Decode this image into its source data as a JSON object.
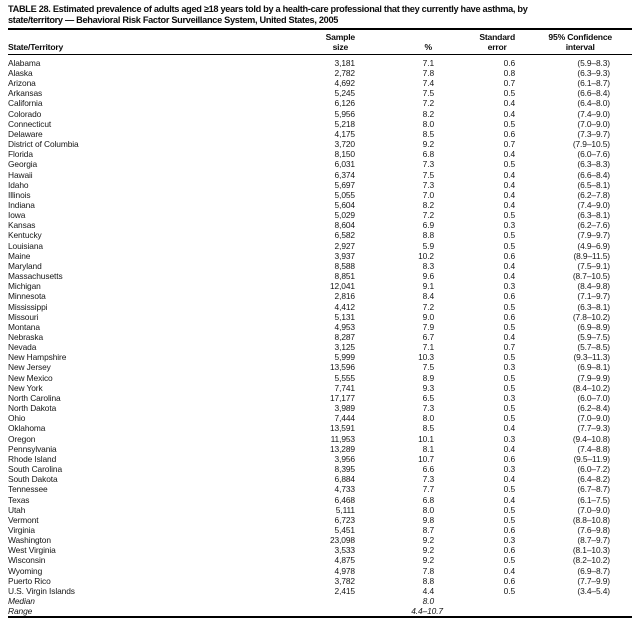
{
  "title": {
    "line1": "TABLE 28. Estimated prevalence of adults aged ≥18 years told by a health-care professional that they currently have asthma, by",
    "line2": "state/territory — Behavioral Risk Factor Surveillance System, United States, 2005"
  },
  "columns": {
    "state": "State/Territory",
    "sample": [
      "Sample",
      "size"
    ],
    "percent": "%",
    "standard_error": [
      "Standard",
      "error"
    ],
    "confidence_interval": [
      "95% Confidence",
      "interval"
    ]
  },
  "rows": [
    {
      "state": "Alabama",
      "sample": "3,181",
      "pct": "7.1",
      "se": "0.6",
      "ci": "(5.9–8.3)"
    },
    {
      "state": "Alaska",
      "sample": "2,782",
      "pct": "7.8",
      "se": "0.8",
      "ci": "(6.3–9.3)"
    },
    {
      "state": "Arizona",
      "sample": "4,692",
      "pct": "7.4",
      "se": "0.7",
      "ci": "(6.1–8.7)"
    },
    {
      "state": "Arkansas",
      "sample": "5,245",
      "pct": "7.5",
      "se": "0.5",
      "ci": "(6.6–8.4)"
    },
    {
      "state": "California",
      "sample": "6,126",
      "pct": "7.2",
      "se": "0.4",
      "ci": "(6.4–8.0)"
    },
    {
      "state": "Colorado",
      "sample": "5,956",
      "pct": "8.2",
      "se": "0.4",
      "ci": "(7.4–9.0)"
    },
    {
      "state": "Connecticut",
      "sample": "5,218",
      "pct": "8.0",
      "se": "0.5",
      "ci": "(7.0–9.0)"
    },
    {
      "state": "Delaware",
      "sample": "4,175",
      "pct": "8.5",
      "se": "0.6",
      "ci": "(7.3–9.7)"
    },
    {
      "state": "District of Columbia",
      "sample": "3,720",
      "pct": "9.2",
      "se": "0.7",
      "ci": "(7.9–10.5)"
    },
    {
      "state": "Florida",
      "sample": "8,150",
      "pct": "6.8",
      "se": "0.4",
      "ci": "(6.0–7.6)"
    },
    {
      "state": "Georgia",
      "sample": "6,031",
      "pct": "7.3",
      "se": "0.5",
      "ci": "(6.3–8.3)"
    },
    {
      "state": "Hawaii",
      "sample": "6,374",
      "pct": "7.5",
      "se": "0.4",
      "ci": "(6.6–8.4)"
    },
    {
      "state": "Idaho",
      "sample": "5,697",
      "pct": "7.3",
      "se": "0.4",
      "ci": "(6.5–8.1)"
    },
    {
      "state": "Illinois",
      "sample": "5,055",
      "pct": "7.0",
      "se": "0.4",
      "ci": "(6.2–7.8)"
    },
    {
      "state": "Indiana",
      "sample": "5,604",
      "pct": "8.2",
      "se": "0.4",
      "ci": "(7.4–9.0)"
    },
    {
      "state": "Iowa",
      "sample": "5,029",
      "pct": "7.2",
      "se": "0.5",
      "ci": "(6.3–8.1)"
    },
    {
      "state": "Kansas",
      "sample": "8,604",
      "pct": "6.9",
      "se": "0.3",
      "ci": "(6.2–7.6)"
    },
    {
      "state": "Kentucky",
      "sample": "6,582",
      "pct": "8.8",
      "se": "0.5",
      "ci": "(7.9–9.7)"
    },
    {
      "state": "Louisiana",
      "sample": "2,927",
      "pct": "5.9",
      "se": "0.5",
      "ci": "(4.9–6.9)"
    },
    {
      "state": "Maine",
      "sample": "3,937",
      "pct": "10.2",
      "se": "0.6",
      "ci": "(8.9–11.5)"
    },
    {
      "state": "Maryland",
      "sample": "8,588",
      "pct": "8.3",
      "se": "0.4",
      "ci": "(7.5–9.1)"
    },
    {
      "state": "Massachusetts",
      "sample": "8,851",
      "pct": "9.6",
      "se": "0.4",
      "ci": "(8.7–10.5)"
    },
    {
      "state": "Michigan",
      "sample": "12,041",
      "pct": "9.1",
      "se": "0.3",
      "ci": "(8.4–9.8)"
    },
    {
      "state": "Minnesota",
      "sample": "2,816",
      "pct": "8.4",
      "se": "0.6",
      "ci": "(7.1–9.7)"
    },
    {
      "state": "Mississippi",
      "sample": "4,412",
      "pct": "7.2",
      "se": "0.5",
      "ci": "(6.3–8.1)"
    },
    {
      "state": "Missouri",
      "sample": "5,131",
      "pct": "9.0",
      "se": "0.6",
      "ci": "(7.8–10.2)"
    },
    {
      "state": "Montana",
      "sample": "4,953",
      "pct": "7.9",
      "se": "0.5",
      "ci": "(6.9–8.9)"
    },
    {
      "state": "Nebraska",
      "sample": "8,287",
      "pct": "6.7",
      "se": "0.4",
      "ci": "(5.9–7.5)"
    },
    {
      "state": "Nevada",
      "sample": "3,125",
      "pct": "7.1",
      "se": "0.7",
      "ci": "(5.7–8.5)"
    },
    {
      "state": "New Hampshire",
      "sample": "5,999",
      "pct": "10.3",
      "se": "0.5",
      "ci": "(9.3–11.3)"
    },
    {
      "state": "New Jersey",
      "sample": "13,596",
      "pct": "7.5",
      "se": "0.3",
      "ci": "(6.9–8.1)"
    },
    {
      "state": "New Mexico",
      "sample": "5,555",
      "pct": "8.9",
      "se": "0.5",
      "ci": "(7.9–9.9)"
    },
    {
      "state": "New York",
      "sample": "7,741",
      "pct": "9.3",
      "se": "0.5",
      "ci": "(8.4–10.2)"
    },
    {
      "state": "North Carolina",
      "sample": "17,177",
      "pct": "6.5",
      "se": "0.3",
      "ci": "(6.0–7.0)"
    },
    {
      "state": "North Dakota",
      "sample": "3,989",
      "pct": "7.3",
      "se": "0.5",
      "ci": "(6.2–8.4)"
    },
    {
      "state": "Ohio",
      "sample": "7,444",
      "pct": "8.0",
      "se": "0.5",
      "ci": "(7.0–9.0)"
    },
    {
      "state": "Oklahoma",
      "sample": "13,591",
      "pct": "8.5",
      "se": "0.4",
      "ci": "(7.7–9.3)"
    },
    {
      "state": "Oregon",
      "sample": "11,953",
      "pct": "10.1",
      "se": "0.3",
      "ci": "(9.4–10.8)"
    },
    {
      "state": "Pennsylvania",
      "sample": "13,289",
      "pct": "8.1",
      "se": "0.4",
      "ci": "(7.4–8.8)"
    },
    {
      "state": "Rhode Island",
      "sample": "3,956",
      "pct": "10.7",
      "se": "0.6",
      "ci": "(9.5–11.9)"
    },
    {
      "state": "South Carolina",
      "sample": "8,395",
      "pct": "6.6",
      "se": "0.3",
      "ci": "(6.0–7.2)"
    },
    {
      "state": "South Dakota",
      "sample": "6,884",
      "pct": "7.3",
      "se": "0.4",
      "ci": "(6.4–8.2)"
    },
    {
      "state": "Tennessee",
      "sample": "4,733",
      "pct": "7.7",
      "se": "0.5",
      "ci": "(6.7–8.7)"
    },
    {
      "state": "Texas",
      "sample": "6,468",
      "pct": "6.8",
      "se": "0.4",
      "ci": "(6.1–7.5)"
    },
    {
      "state": "Utah",
      "sample": "5,111",
      "pct": "8.0",
      "se": "0.5",
      "ci": "(7.0–9.0)"
    },
    {
      "state": "Vermont",
      "sample": "6,723",
      "pct": "9.8",
      "se": "0.5",
      "ci": "(8.8–10.8)"
    },
    {
      "state": "Virginia",
      "sample": "5,451",
      "pct": "8.7",
      "se": "0.6",
      "ci": "(7.6–9.8)"
    },
    {
      "state": "Washington",
      "sample": "23,098",
      "pct": "9.2",
      "se": "0.3",
      "ci": "(8.7–9.7)"
    },
    {
      "state": "West Virginia",
      "sample": "3,533",
      "pct": "9.2",
      "se": "0.6",
      "ci": "(8.1–10.3)"
    },
    {
      "state": "Wisconsin",
      "sample": "4,875",
      "pct": "9.2",
      "se": "0.5",
      "ci": "(8.2–10.2)"
    },
    {
      "state": "Wyoming",
      "sample": "4,978",
      "pct": "7.8",
      "se": "0.4",
      "ci": "(6.9–8.7)"
    },
    {
      "state": "Puerto Rico",
      "sample": "3,782",
      "pct": "8.8",
      "se": "0.6",
      "ci": "(7.7–9.9)"
    },
    {
      "state": "U.S. Virgin Islands",
      "sample": "2,415",
      "pct": "4.4",
      "se": "0.5",
      "ci": "(3.4–5.4)"
    }
  ],
  "summary": {
    "median": {
      "label": "Median",
      "value": "8.0"
    },
    "range": {
      "label": "Range",
      "value": "4.4–10.7"
    }
  }
}
